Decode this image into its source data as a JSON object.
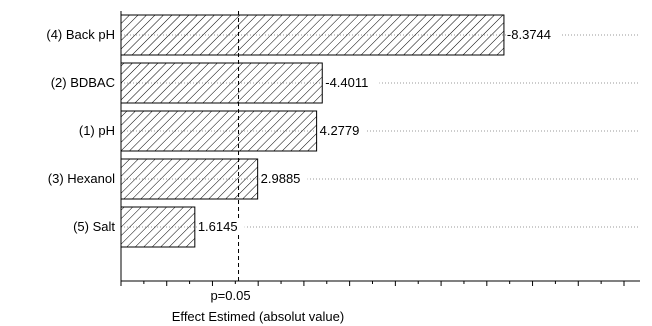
{
  "chart_data": {
    "type": "bar",
    "orientation": "horizontal",
    "categories": [
      "(4) Back pH",
      "(2) BDBAC",
      "(1) pH",
      "(3) Hexanol",
      "(5) Salt"
    ],
    "values": [
      8.3744,
      4.4011,
      4.2779,
      2.9885,
      1.6145
    ],
    "value_labels": [
      "-8.3744",
      "-4.4011",
      "4.2779",
      "2.9885",
      "1.6145"
    ],
    "xlim": [
      0,
      11.35
    ],
    "xlabel": "Effect Estimed (absolut value)",
    "reference_line": {
      "value": 2.57,
      "label": "p=0.05"
    },
    "bar_fill": "diagonal-hatch",
    "grid": "horizontal-dotted",
    "colors": {
      "bar_stroke": "#000000",
      "hatch": "#000000",
      "grid": "#999999",
      "reference": "#000000"
    }
  }
}
